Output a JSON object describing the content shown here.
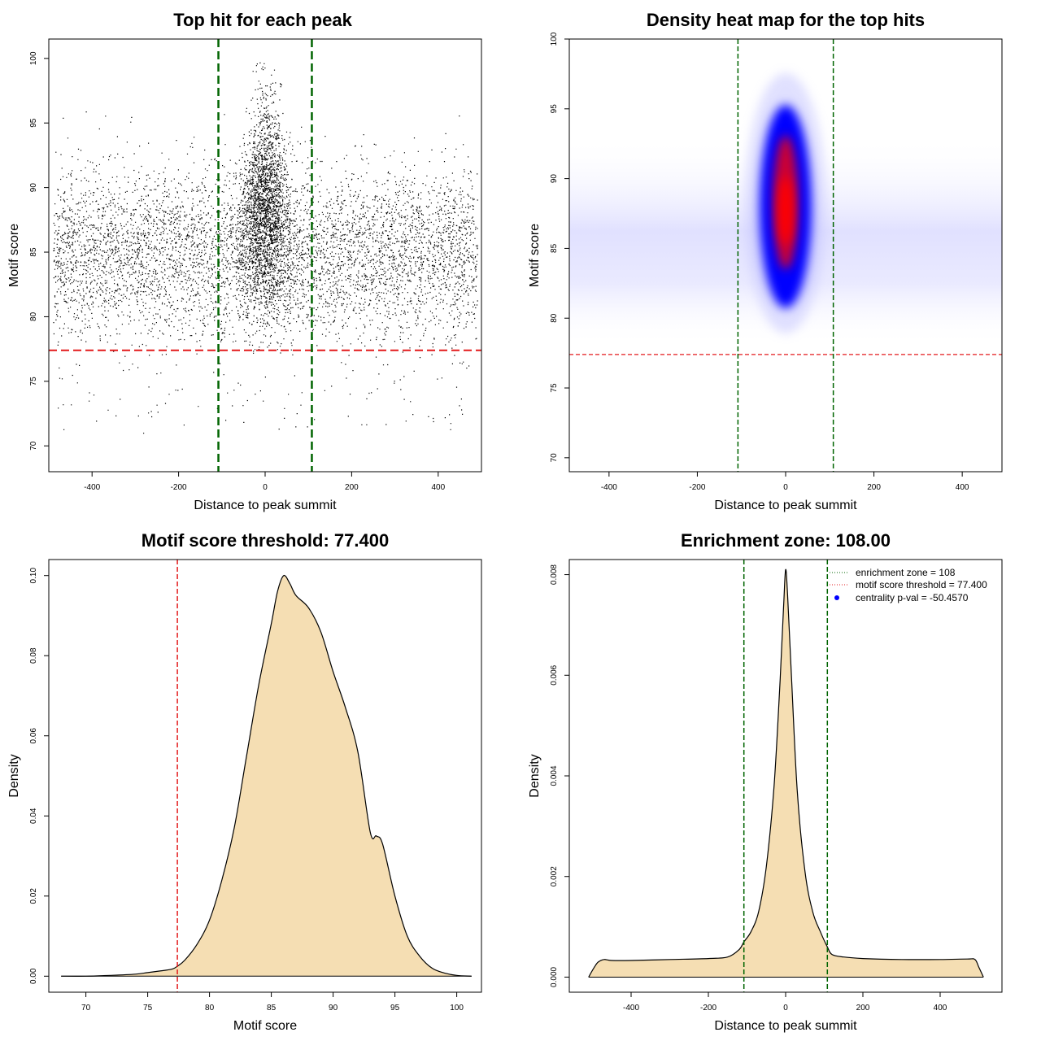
{
  "colors": {
    "threshold_line": "#e31a1c",
    "zone_line": "#006400",
    "density_fill": "#f5deb3",
    "heat_low": "#ffffff",
    "heat_mid": "#0000ff",
    "heat_high": "#ff0000"
  },
  "chart_data": [
    {
      "type": "scatter",
      "title": "Top hit for each peak",
      "xlabel": "Distance to peak summit",
      "ylabel": "Motif score",
      "xlim": [
        -500,
        500
      ],
      "ylim": [
        68,
        101.5
      ],
      "xticks": [
        -400,
        -200,
        0,
        200,
        400
      ],
      "xtick_labels": [
        "-400",
        "-200",
        "0",
        "200",
        "400"
      ],
      "yticks": [
        70,
        75,
        80,
        85,
        90,
        95,
        100
      ],
      "ytick_labels": [
        "70",
        "75",
        "80",
        "85",
        "90",
        "95",
        "100"
      ],
      "threshold_y": 77.4,
      "zone_x": [
        -108,
        108
      ],
      "points_description": "dense cloud centered near x=0 between scores 78-100, background band across x=-490..490 at scores 78-94"
    },
    {
      "type": "heatmap",
      "title": "Density heat map for the top hits",
      "xlabel": "Distance to peak summit",
      "ylabel": "Motif score",
      "xlim": [
        -490,
        490
      ],
      "ylim": [
        69,
        100
      ],
      "xticks": [
        -400,
        -200,
        0,
        200,
        400
      ],
      "xtick_labels": [
        "-400",
        "-200",
        "0",
        "200",
        "400"
      ],
      "yticks": [
        70,
        75,
        80,
        85,
        90,
        95,
        100
      ],
      "ytick_labels": [
        "70",
        "75",
        "80",
        "85",
        "90",
        "95",
        "100"
      ],
      "threshold_y": 77.4,
      "zone_x": [
        -108,
        108
      ],
      "peak": {
        "x": 0,
        "y": 88
      }
    },
    {
      "type": "area",
      "title": "Motif score threshold: 77.400",
      "xlabel": "Motif score",
      "ylabel": "Density",
      "xlim": [
        67,
        102
      ],
      "ylim": [
        -0.004,
        0.104
      ],
      "xticks": [
        70,
        75,
        80,
        85,
        90,
        95,
        100
      ],
      "xtick_labels": [
        "70",
        "75",
        "80",
        "85",
        "90",
        "95",
        "100"
      ],
      "yticks": [
        0,
        0.02,
        0.04,
        0.06,
        0.08,
        0.1
      ],
      "ytick_labels": [
        "0.00",
        "0.02",
        "0.04",
        "0.06",
        "0.08",
        "0.10"
      ],
      "threshold_x": 77.4,
      "x": [
        68,
        70,
        72,
        74,
        75,
        76,
        77,
        77.4,
        78,
        79,
        80,
        81,
        82,
        83,
        84,
        85,
        85.5,
        86,
        86.5,
        87,
        88,
        89,
        90,
        91,
        92,
        93,
        93.5,
        94,
        95,
        96,
        97,
        98,
        99,
        100,
        101.2
      ],
      "y": [
        0.0,
        0.0,
        0.0002,
        0.0005,
        0.0009,
        0.0013,
        0.0018,
        0.0025,
        0.004,
        0.008,
        0.014,
        0.024,
        0.037,
        0.055,
        0.073,
        0.088,
        0.096,
        0.1,
        0.098,
        0.095,
        0.092,
        0.086,
        0.076,
        0.067,
        0.056,
        0.036,
        0.035,
        0.033,
        0.02,
        0.01,
        0.005,
        0.002,
        0.0008,
        0.0002,
        0.0
      ]
    },
    {
      "type": "area",
      "title": "Enrichment zone: 108.00",
      "xlabel": "Distance to peak summit",
      "ylabel": "Density",
      "xlim": [
        -560,
        560
      ],
      "ylim": [
        -0.0003,
        0.0083
      ],
      "xticks": [
        -400,
        -200,
        0,
        200,
        400
      ],
      "xtick_labels": [
        "-400",
        "-200",
        "0",
        "200",
        "400"
      ],
      "yticks": [
        0,
        0.002,
        0.004,
        0.006,
        0.008
      ],
      "ytick_labels": [
        "0.000",
        "0.002",
        "0.004",
        "0.006",
        "0.008"
      ],
      "zone_x": [
        -108,
        108
      ],
      "x": [
        -510,
        -495,
        -485,
        -470,
        -450,
        -400,
        -300,
        -200,
        -150,
        -120,
        -108,
        -90,
        -70,
        -50,
        -30,
        -15,
        -5,
        0,
        5,
        15,
        30,
        50,
        70,
        90,
        108,
        120,
        150,
        200,
        300,
        400,
        470,
        490,
        500,
        512
      ],
      "y": [
        0.0,
        0.0002,
        0.0003,
        0.00035,
        0.00033,
        0.00033,
        0.00035,
        0.00037,
        0.0004,
        0.00055,
        0.0007,
        0.0009,
        0.0013,
        0.0022,
        0.0038,
        0.0058,
        0.0074,
        0.0081,
        0.0076,
        0.006,
        0.0037,
        0.0021,
        0.0013,
        0.0009,
        0.0006,
        0.00045,
        0.0004,
        0.00037,
        0.00035,
        0.00035,
        0.00036,
        0.00035,
        0.0002,
        0.0
      ],
      "legend": [
        {
          "label": "enrichment zone = 108",
          "style": "dotted-line",
          "color": "#006400"
        },
        {
          "label": "motif score threshold = 77.400",
          "style": "dotted-line",
          "color": "#e31a1c"
        },
        {
          "label": "centrality p-val = -50.4570",
          "style": "point",
          "color": "#0000ff"
        }
      ],
      "legend_position": "top-right"
    }
  ]
}
